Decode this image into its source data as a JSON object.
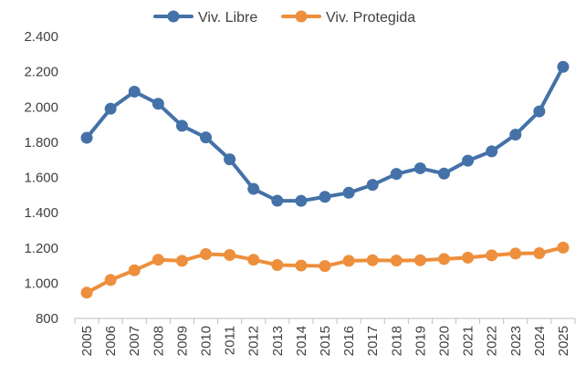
{
  "chart_data": {
    "type": "line",
    "title": "",
    "xlabel": "",
    "ylabel": "",
    "categories": [
      "2005",
      "2006",
      "2007",
      "2008",
      "2009",
      "2010",
      "2011",
      "2012",
      "2013",
      "2014",
      "2015",
      "2016",
      "2017",
      "2018",
      "2019",
      "2020",
      "2021",
      "2022",
      "2023",
      "2024",
      "2025"
    ],
    "ylim": [
      800,
      2400
    ],
    "yticks": [
      800,
      1000,
      1200,
      1400,
      1600,
      1800,
      2000,
      2200,
      2400
    ],
    "ytick_labels": [
      "800",
      "1.000",
      "1.200",
      "1.400",
      "1.600",
      "1.800",
      "2.000",
      "2.200",
      "2.400"
    ],
    "grid": false,
    "legend_position": "top",
    "series": [
      {
        "name": "Viv. Libre",
        "color": "#4472a8",
        "values": [
          1825,
          1990,
          2087,
          2018,
          1893,
          1827,
          1703,
          1535,
          1468,
          1467,
          1490,
          1513,
          1558,
          1620,
          1652,
          1622,
          1695,
          1748,
          1843,
          1975,
          2228
        ]
      },
      {
        "name": "Viv. Protegida",
        "color": "#ed8f3c",
        "values": [
          946,
          1018,
          1073,
          1133,
          1127,
          1165,
          1160,
          1133,
          1103,
          1100,
          1097,
          1127,
          1130,
          1128,
          1130,
          1137,
          1145,
          1158,
          1168,
          1170,
          1202
        ]
      }
    ]
  }
}
